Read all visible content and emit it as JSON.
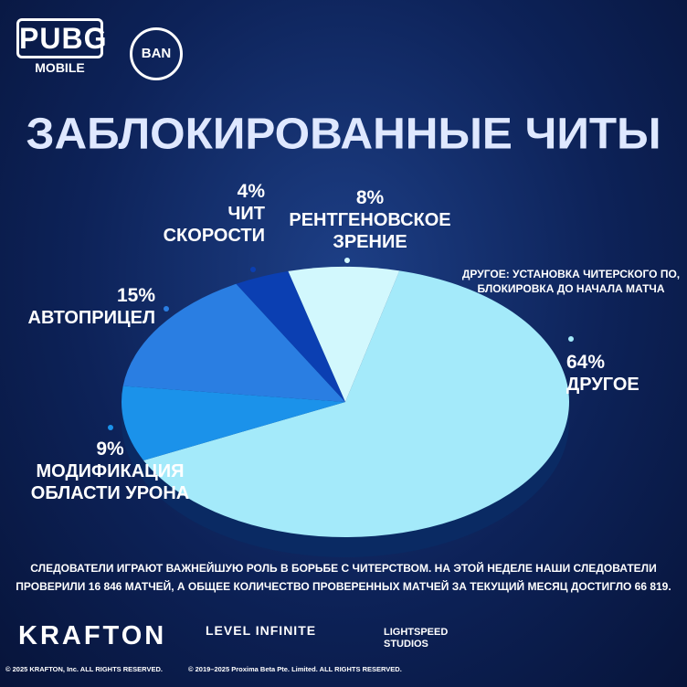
{
  "header": {
    "logo": "PUBG",
    "logo_sub": "MOBILE",
    "badge": "BAN"
  },
  "chart_data": {
    "type": "pie",
    "title": "ЗАБЛОКИРОВАННЫЕ ЧИТЫ",
    "categories": [
      "ДРУГОЕ",
      "МОДИФИКАЦИЯ ОБЛАСТИ УРОНА",
      "АВТОПРИЦЕЛ",
      "ЧИТ СКОРОСТИ",
      "РЕНТГЕНОВСКОЕ ЗРЕНИЕ"
    ],
    "values": [
      64,
      9,
      15,
      4,
      8
    ],
    "value_labels": [
      "64%",
      "9%",
      "15%",
      "4%",
      "8%"
    ],
    "colors": [
      "#a4eafa",
      "#1b92ea",
      "#2a7ee2",
      "#0b3fb2",
      "#d2f8fd"
    ],
    "annotation": "ДРУГОЕ: УСТАНОВКА ЧИТЕРСКОГО ПО, БЛОКИРОВКА ДО НАЧАЛА МАТЧА"
  },
  "footer": {
    "text": "СЛЕДОВАТЕЛИ ИГРАЮТ ВАЖНЕЙШУЮ РОЛЬ В БОРЬБЕ С ЧИТЕРСТВОМ. НА ЭТОЙ НЕДЕЛЕ НАШИ СЛЕДОВАТЕЛИ ПРОВЕРИЛИ 16 846 МАТЧЕЙ, А ОБЩЕЕ КОЛИЧЕСТВО ПРОВЕРЕННЫХ МАТЧЕЙ ЗА ТЕКУЩИЙ МЕСЯЦ ДОСТИГЛО 66 819.",
    "brands": [
      "KRAFTON",
      "LEVEL INFINITE",
      "LIGHTSPEED STUDIOS"
    ],
    "copyright": [
      "© 2025 KRAFTON, Inc. ALL RIGHTS RESERVED.",
      "© 2019–2025 Proxima Beta Pte. Limited. ALL RIGHTS RESERVED."
    ]
  }
}
